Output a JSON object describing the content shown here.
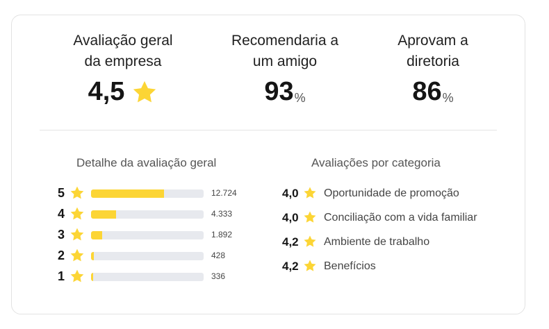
{
  "summary": {
    "overall": {
      "label_line1": "Avaliação geral",
      "label_line2": "da empresa",
      "value": "4,5",
      "icon": "star-icon"
    },
    "recommend": {
      "label_line1": "Recomendaria a",
      "label_line2": "um amigo",
      "value": "93",
      "unit": "%"
    },
    "approve_ceo": {
      "label_line1": "Aprovam a",
      "label_line2": "diretoria",
      "value": "86",
      "unit": "%"
    }
  },
  "distribution": {
    "title": "Detalhe da avaliação geral",
    "rows": [
      {
        "stars": "5",
        "count": "12.724",
        "fraction": 0.65
      },
      {
        "stars": "4",
        "count": "4.333",
        "fraction": 0.22
      },
      {
        "stars": "3",
        "count": "1.892",
        "fraction": 0.1
      },
      {
        "stars": "2",
        "count": "428",
        "fraction": 0.025
      },
      {
        "stars": "1",
        "count": "336",
        "fraction": 0.02
      }
    ]
  },
  "categories": {
    "title": "Avaliações por categoria",
    "items": [
      {
        "rating": "4,0",
        "label": "Oportunidade de promoção"
      },
      {
        "rating": "4,0",
        "label": "Conciliação com a vida familiar"
      },
      {
        "rating": "4,2",
        "label": "Ambiente de trabalho"
      },
      {
        "rating": "4,2",
        "label": "Benefícios"
      }
    ]
  },
  "colors": {
    "accent": "#fcd535",
    "track": "#e7e9ee",
    "text": "#1a1a1a",
    "muted": "#555555"
  }
}
